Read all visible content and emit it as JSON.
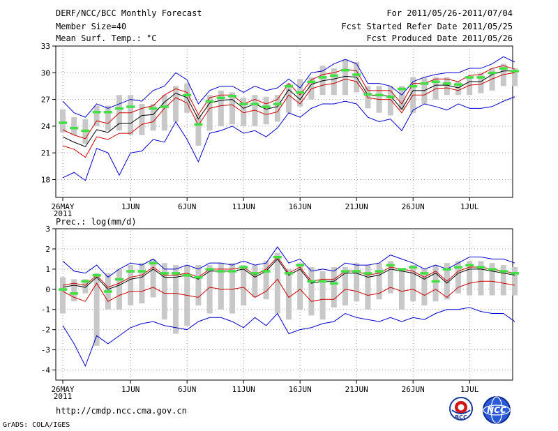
{
  "header": {
    "title": "DERF/NCC/BCC Monthly Forecast",
    "member_size": "Member Size=40",
    "variable": "Mean Surf. Temp.: °C",
    "valid_range": "For 2011/05/26-2011/07/04",
    "start_date": "Fcst Started Refer Date 2011/05/25",
    "produced_date": "Fcst Produced Date 2011/05/26"
  },
  "footer": {
    "url": "http://cmdp.ncc.cma.gov.cn",
    "grads_credit": "GrADS: COLA/IGES"
  },
  "logos": {
    "bcc": "BCC",
    "ncc": "NCC"
  },
  "colors": {
    "ensemble_mean": "#000000",
    "median": "#cc0000",
    "spread": "#0000cc",
    "box": "#c8c8c8",
    "obs_marker": "#40e040"
  },
  "chart_data": [
    {
      "type": "line",
      "name": "temperature",
      "title": "Mean Surf. Temp.: °C",
      "ylim": [
        16,
        33
      ],
      "yticks": [
        18,
        21,
        24,
        27,
        30,
        33
      ],
      "x_ticks": [
        {
          "day": 0,
          "label": "26MAY",
          "sub": "2011"
        },
        {
          "day": 6,
          "label": "1JUN"
        },
        {
          "day": 11,
          "label": "6JUN"
        },
        {
          "day": 16,
          "label": "11JUN"
        },
        {
          "day": 21,
          "label": "16JUN"
        },
        {
          "day": 26,
          "label": "21JUN"
        },
        {
          "day": 31,
          "label": "26JUN"
        },
        {
          "day": 36,
          "label": "1JUL"
        }
      ],
      "box_low": [
        23.3,
        23.0,
        22.0,
        24.0,
        23.5,
        23.5,
        23.0,
        23.0,
        23.5,
        23.5,
        24.5,
        25.5,
        21.8,
        23.5,
        24.0,
        24.2,
        24.0,
        24.0,
        24.2,
        24.5,
        25.5,
        26.2,
        27.0,
        27.5,
        27.5,
        27.5,
        27.8,
        26.0,
        25.5,
        25.2,
        25.8,
        25.5,
        26.5,
        27.0,
        27.5,
        27.5,
        27.5,
        27.7,
        28.0,
        28.5,
        28.5
      ],
      "box_high": [
        25.9,
        25.0,
        24.8,
        26.3,
        26.3,
        27.5,
        27.5,
        26.5,
        26.5,
        27.5,
        28.5,
        28.8,
        25.3,
        27.5,
        28.0,
        27.8,
        27.2,
        27.5,
        27.3,
        27.5,
        28.8,
        29.3,
        29.5,
        30.8,
        30.5,
        31.5,
        31.2,
        28.5,
        28.5,
        28.5,
        28.5,
        29.5,
        29.5,
        29.5,
        29.5,
        29.0,
        29.5,
        30.0,
        30.5,
        31.0,
        30.5
      ],
      "obs": [
        24.4,
        23.8,
        23.5,
        25.6,
        25.6,
        26.0,
        26.2,
        null,
        26.0,
        26.2,
        null,
        27.5,
        24.2,
        26.8,
        27.2,
        27.4,
        26.5,
        26.5,
        26.2,
        26.5,
        28.5,
        27.8,
        29.0,
        29.5,
        29.7,
        30.3,
        29.8,
        27.6,
        27.5,
        27.3,
        28.2,
        28.5,
        28.8,
        29.0,
        28.8,
        28.7,
        29.5,
        29.5,
        30.0,
        30.5,
        30.2
      ],
      "series": [
        {
          "name": "ensemble-mean",
          "color": "#000000",
          "values": [
            22.8,
            22.2,
            21.7,
            23.6,
            23.3,
            24.3,
            24.3,
            25.2,
            25.3,
            26.7,
            27.7,
            27.2,
            24.8,
            26.6,
            26.9,
            27.0,
            26.0,
            26.5,
            25.9,
            26.2,
            28.1,
            27.0,
            28.7,
            29.1,
            29.3,
            29.6,
            29.5,
            27.5,
            27.4,
            27.4,
            25.9,
            28.0,
            28.0,
            28.6,
            28.6,
            28.3,
            29.0,
            29.0,
            29.8,
            30.2,
            30.2
          ]
        },
        {
          "name": "member-upper",
          "color": "#cc0000",
          "values": [
            23.6,
            23.0,
            22.6,
            24.6,
            24.3,
            25.5,
            25.5,
            26.0,
            26.3,
            27.5,
            28.2,
            27.8,
            25.3,
            27.2,
            27.5,
            27.5,
            26.5,
            27.0,
            26.5,
            27.0,
            28.8,
            27.5,
            29.2,
            29.8,
            30.0,
            30.4,
            30.2,
            28.0,
            28.0,
            28.0,
            26.5,
            28.8,
            28.8,
            29.3,
            29.3,
            29.0,
            29.7,
            29.8,
            30.5,
            30.8,
            30.4
          ]
        },
        {
          "name": "member-lower",
          "color": "#cc0000",
          "values": [
            21.8,
            21.4,
            20.5,
            22.8,
            22.5,
            23.2,
            23.2,
            24.2,
            24.5,
            26.0,
            27.2,
            26.6,
            24.1,
            26.0,
            26.3,
            26.4,
            25.5,
            25.8,
            25.3,
            25.6,
            27.5,
            26.5,
            28.2,
            28.6,
            28.8,
            29.3,
            29.0,
            27.2,
            27.0,
            27.0,
            25.5,
            27.5,
            27.5,
            28.2,
            28.3,
            28.0,
            28.6,
            28.7,
            29.3,
            29.8,
            30.0
          ]
        },
        {
          "name": "max-envelope",
          "color": "#0000cc",
          "values": [
            26.8,
            25.5,
            25.0,
            26.5,
            26.0,
            26.5,
            27.0,
            26.8,
            28.0,
            28.5,
            30.0,
            29.2,
            26.5,
            28.0,
            28.5,
            28.5,
            27.8,
            28.5,
            28.0,
            28.3,
            29.3,
            28.3,
            30.0,
            30.2,
            31.0,
            31.5,
            31.0,
            28.8,
            28.8,
            28.5,
            27.5,
            29.0,
            29.5,
            29.8,
            30.0,
            30.0,
            30.5,
            30.5,
            31.0,
            31.8,
            31.2
          ]
        },
        {
          "name": "min-envelope",
          "color": "#0000cc",
          "values": [
            18.2,
            18.8,
            17.9,
            21.5,
            21.0,
            18.5,
            21.0,
            21.2,
            22.5,
            22.2,
            24.5,
            22.5,
            20.0,
            23.2,
            23.5,
            24.0,
            23.2,
            23.5,
            22.8,
            23.8,
            25.5,
            25.0,
            26.0,
            26.5,
            26.5,
            26.8,
            26.5,
            25.0,
            24.5,
            24.8,
            23.5,
            25.8,
            26.5,
            26.2,
            25.8,
            26.5,
            26.0,
            26.0,
            26.2,
            26.8,
            27.3
          ]
        }
      ]
    },
    {
      "type": "line",
      "name": "precipitation",
      "title": "Prec.: log(mm/d)",
      "ylim": [
        -4.5,
        3
      ],
      "yticks": [
        -4,
        -3,
        -2,
        -1,
        0,
        1,
        2,
        3
      ],
      "x_ticks": [
        {
          "day": 0,
          "label": "26MAY",
          "sub": "2011"
        },
        {
          "day": 6,
          "label": "1JUN"
        },
        {
          "day": 11,
          "label": "6JUN"
        },
        {
          "day": 16,
          "label": "11JUN"
        },
        {
          "day": 21,
          "label": "16JUN"
        },
        {
          "day": 26,
          "label": "21JUN"
        },
        {
          "day": 31,
          "label": "26JUN"
        },
        {
          "day": 36,
          "label": "1JUL"
        }
      ],
      "box_low": [
        -1.2,
        -0.6,
        -0.2,
        -2.8,
        -1.0,
        -1.0,
        -0.8,
        -0.7,
        -0.4,
        -1.5,
        -2.2,
        -1.8,
        -0.8,
        -1.2,
        -1.0,
        -1.2,
        -0.8,
        -0.4,
        -0.5,
        -1.2,
        -1.5,
        -1.0,
        -1.3,
        -1.5,
        -0.9,
        -0.8,
        -0.6,
        -1.0,
        -0.5,
        -0.2,
        -1.0,
        -0.6,
        -0.8,
        -0.6,
        -0.5,
        -0.2,
        -0.3,
        -0.3,
        -0.3,
        -0.3,
        -0.3
      ],
      "box_high": [
        0.6,
        0.5,
        0.5,
        0.8,
        0.8,
        1.0,
        1.2,
        1.3,
        1.5,
        1.3,
        1.2,
        1.2,
        1.2,
        1.2,
        1.3,
        1.3,
        1.2,
        1.2,
        1.4,
        1.8,
        1.0,
        1.3,
        1.1,
        0.9,
        1.1,
        1.1,
        1.3,
        1.2,
        1.3,
        1.4,
        1.0,
        1.2,
        1.0,
        1.2,
        1.3,
        1.4,
        1.4,
        1.4,
        1.3,
        1.2,
        1.1
      ],
      "obs": [
        0.0,
        -0.2,
        0.4,
        0.7,
        -0.1,
        0.5,
        0.9,
        0.9,
        1.3,
        0.8,
        0.8,
        0.7,
        0.6,
        1.0,
        0.9,
        0.9,
        1.1,
        0.8,
        0.9,
        1.6,
        0.8,
        1.2,
        0.4,
        0.4,
        0.3,
        0.9,
        0.9,
        0.8,
        0.9,
        1.2,
        1.0,
        1.1,
        0.8,
        0.4,
        1.0,
        1.1,
        1.2,
        1.1,
        1.0,
        0.9,
        0.8
      ],
      "series": [
        {
          "name": "ensemble-mean",
          "color": "#000000",
          "values": [
            0.1,
            0.2,
            0.1,
            0.6,
            0.0,
            0.2,
            0.5,
            0.6,
            1.0,
            0.6,
            0.6,
            0.7,
            0.5,
            0.9,
            0.9,
            0.9,
            1.0,
            0.6,
            0.9,
            1.5,
            0.7,
            1.0,
            0.3,
            0.4,
            0.4,
            0.8,
            0.8,
            0.6,
            0.7,
            1.0,
            0.9,
            0.8,
            0.5,
            0.8,
            0.3,
            0.8,
            1.0,
            1.0,
            0.9,
            0.8,
            0.7
          ]
        },
        {
          "name": "member-upper",
          "color": "#cc0000",
          "values": [
            0.2,
            0.3,
            0.2,
            0.7,
            0.1,
            0.3,
            0.6,
            0.7,
            1.1,
            0.7,
            0.7,
            0.8,
            0.6,
            1.0,
            1.0,
            1.0,
            1.1,
            0.7,
            1.0,
            1.6,
            0.8,
            1.1,
            0.4,
            0.5,
            0.5,
            0.9,
            0.9,
            0.7,
            0.8,
            1.1,
            1.0,
            0.9,
            0.6,
            0.9,
            0.4,
            0.9,
            1.1,
            1.1,
            1.0,
            0.9,
            0.8
          ]
        },
        {
          "name": "member-lower",
          "color": "#cc0000",
          "values": [
            -0.1,
            -0.4,
            -0.6,
            0.3,
            -0.6,
            -0.3,
            -0.1,
            -0.1,
            0.1,
            -0.2,
            -0.2,
            -0.3,
            -0.4,
            0.1,
            0.0,
            0.0,
            0.1,
            -0.4,
            -0.1,
            0.5,
            -0.4,
            0.0,
            -0.6,
            -0.5,
            -0.5,
            0.0,
            -0.1,
            -0.3,
            -0.2,
            0.1,
            -0.1,
            0.0,
            -0.3,
            0.0,
            -0.4,
            0.1,
            0.3,
            0.4,
            0.4,
            0.3,
            0.2
          ]
        },
        {
          "name": "max-envelope",
          "color": "#0000cc",
          "values": [
            1.4,
            0.9,
            0.8,
            1.2,
            0.6,
            1.0,
            1.3,
            1.2,
            1.5,
            1.0,
            1.0,
            1.2,
            1.0,
            1.3,
            1.3,
            1.2,
            1.4,
            1.2,
            1.3,
            2.1,
            1.3,
            1.5,
            0.9,
            1.0,
            0.9,
            1.3,
            1.2,
            1.2,
            1.3,
            1.7,
            1.5,
            1.3,
            1.0,
            1.2,
            1.0,
            1.3,
            1.6,
            1.6,
            1.5,
            1.5,
            1.3
          ]
        },
        {
          "name": "min-envelope",
          "color": "#0000cc",
          "values": [
            -1.8,
            -2.7,
            -3.8,
            -2.3,
            -2.7,
            -2.3,
            -1.9,
            -1.7,
            -1.6,
            -1.8,
            -1.9,
            -2.0,
            -1.6,
            -1.4,
            -1.4,
            -1.6,
            -1.9,
            -1.4,
            -1.8,
            -1.2,
            -2.2,
            -2.0,
            -1.9,
            -1.7,
            -1.6,
            -1.2,
            -1.4,
            -1.5,
            -1.6,
            -1.4,
            -1.6,
            -1.4,
            -1.5,
            -1.2,
            -1.0,
            -1.0,
            -0.9,
            -1.1,
            -1.2,
            -1.2,
            -1.6
          ]
        }
      ]
    }
  ]
}
